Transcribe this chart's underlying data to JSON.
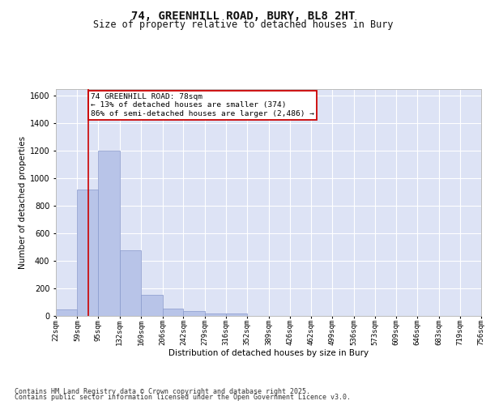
{
  "title_line1": "74, GREENHILL ROAD, BURY, BL8 2HT",
  "title_line2": "Size of property relative to detached houses in Bury",
  "xlabel": "Distribution of detached houses by size in Bury",
  "ylabel": "Number of detached properties",
  "background_color": "#ffffff",
  "plot_bg_color": "#dde3f5",
  "bar_color": "#b8c4e8",
  "bar_edge_color": "#8899cc",
  "grid_color": "#ffffff",
  "vline_color": "#cc0000",
  "vline_x": 78,
  "annotation_box_color": "#cc0000",
  "annotation_text": "74 GREENHILL ROAD: 78sqm\n← 13% of detached houses are smaller (374)\n86% of semi-detached houses are larger (2,486) →",
  "annotation_fontsize": 6.8,
  "bin_edges": [
    22,
    59,
    95,
    132,
    169,
    206,
    242,
    279,
    316,
    352,
    389,
    426,
    462,
    499,
    536,
    573,
    609,
    646,
    683,
    719,
    756
  ],
  "bar_heights": [
    50,
    920,
    1200,
    475,
    155,
    55,
    35,
    20,
    20,
    0,
    0,
    0,
    0,
    0,
    0,
    0,
    0,
    0,
    0,
    0
  ],
  "ylim": [
    0,
    1650
  ],
  "yticks": [
    0,
    200,
    400,
    600,
    800,
    1000,
    1200,
    1400,
    1600
  ],
  "tick_labels": [
    "22sqm",
    "59sqm",
    "95sqm",
    "132sqm",
    "169sqm",
    "206sqm",
    "242sqm",
    "279sqm",
    "316sqm",
    "352sqm",
    "389sqm",
    "426sqm",
    "462sqm",
    "499sqm",
    "536sqm",
    "573sqm",
    "609sqm",
    "646sqm",
    "683sqm",
    "719sqm",
    "756sqm"
  ],
  "footer_line1": "Contains HM Land Registry data © Crown copyright and database right 2025.",
  "footer_line2": "Contains public sector information licensed under the Open Government Licence v3.0.",
  "title_fontsize": 10,
  "subtitle_fontsize": 8.5,
  "axis_label_fontsize": 7.5,
  "tick_fontsize": 6.5,
  "ytick_fontsize": 7,
  "footer_fontsize": 6.0
}
